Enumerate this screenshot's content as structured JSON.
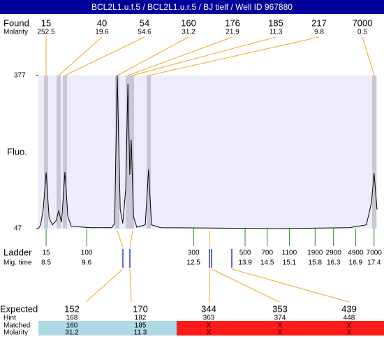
{
  "title": "BCL2L1.u.f.5 / BCL2L1.u.r.5 / BJ tielf / Well ID 967880",
  "found": {
    "label": "Found",
    "sizes": [
      15,
      40,
      54,
      160,
      176,
      185,
      217,
      7000
    ],
    "molarity_label": "Molarity",
    "molarity": [
      252.5,
      19.6,
      54.6,
      31.2,
      21.9,
      11.3,
      9.8,
      0.5
    ]
  },
  "chart_data": {
    "type": "line",
    "ylabel": "Fluo.",
    "xlim": [
      8.29,
      17.48
    ],
    "ylim": [
      47,
      377
    ],
    "yticks": [
      47,
      377
    ],
    "color": "#000000",
    "background": "#ececfa",
    "x": [
      8.29,
      8.35,
      8.42,
      8.5,
      8.58,
      8.67,
      8.77,
      8.84,
      8.92,
      9.01,
      9.09,
      9.18,
      9.71,
      10.28,
      10.36,
      10.43,
      10.51,
      10.58,
      10.66,
      10.72,
      10.77,
      10.81,
      10.87,
      10.96,
      11.19,
      11.28,
      11.36,
      11.61,
      14.83,
      16.72,
      17.19,
      17.33,
      17.4,
      17.48
    ],
    "values": [
      47,
      55,
      88,
      168,
      70,
      55,
      64,
      85,
      61,
      169,
      73,
      52,
      49,
      49,
      58,
      377,
      88,
      58,
      133,
      359,
      163,
      238,
      73,
      50,
      55,
      174,
      55,
      49,
      47,
      49,
      55,
      103,
      166,
      88
    ]
  },
  "ladder": {
    "label": "Ladder",
    "time_label": "Mig. time",
    "sizes": [
      15,
      100,
      300,
      500,
      700,
      1100,
      1900,
      2900,
      4900,
      7000
    ],
    "times": [
      8.5,
      9.6,
      12.5,
      13.9,
      14.5,
      15.1,
      15.8,
      16.3,
      16.9,
      17.4
    ]
  },
  "expected": {
    "label": "Expected",
    "values": [
      152,
      170,
      344,
      353,
      439
    ],
    "hint_label": "Hint",
    "hint": [
      168,
      182,
      363,
      374,
      448
    ],
    "matched_label": "Matched",
    "matched": [
      160,
      185,
      "X",
      "X",
      "X"
    ],
    "molarity_label": "Molarity",
    "molarity": [
      31.2,
      11.3,
      "X",
      "X",
      "X"
    ]
  }
}
